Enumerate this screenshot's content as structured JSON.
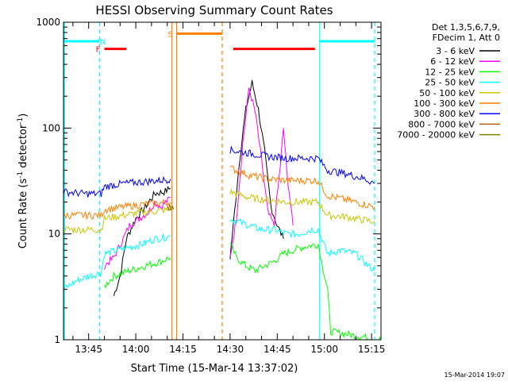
{
  "chart_data": {
    "type": "line",
    "title": "HESSI Observing Summary Count Rates",
    "xlabel": "Start Time (15-Mar-14 13:37:02)",
    "ylabel_main": "Count Rate (s",
    "ylabel_sup1": "-1",
    "ylabel_mid": " detector",
    "ylabel_sup2": "-1",
    "ylabel_end": ")",
    "footer": "15-Mar-2014 19:07",
    "yscale": "log",
    "ylim": [
      1,
      1000
    ],
    "xlim": [
      37,
      138
    ],
    "x_ticks": [
      {
        "v": 45,
        "label": "13:45"
      },
      {
        "v": 60,
        "label": "14:00"
      },
      {
        "v": 75,
        "label": "14:15"
      },
      {
        "v": 90,
        "label": "14:30"
      },
      {
        "v": 105,
        "label": "14:45"
      },
      {
        "v": 120,
        "label": "15:00"
      },
      {
        "v": 135,
        "label": "15:15"
      }
    ],
    "y_ticks": [
      {
        "v": 1,
        "label": "1"
      },
      {
        "v": 10,
        "label": "10"
      },
      {
        "v": 100,
        "label": "100"
      },
      {
        "v": 1000,
        "label": "1000"
      }
    ],
    "legend": {
      "placement": "top-right",
      "header": [
        "Det 1,3,5,6,7,9,",
        "FDecim 1, Att 0"
      ]
    },
    "series": [
      {
        "name": "3 - 6 keV",
        "color": "#000000",
        "points": [
          [
            53,
            2.6
          ],
          [
            55,
            4
          ],
          [
            57,
            9
          ],
          [
            60,
            14
          ],
          [
            63,
            18
          ],
          [
            66,
            24
          ],
          [
            69,
            25
          ],
          [
            71,
            27
          ],
          [
            72,
            null
          ],
          [
            89,
            null
          ],
          [
            90,
            6
          ],
          [
            91,
            12
          ],
          [
            93,
            50
          ],
          [
            95,
            150
          ],
          [
            97,
            270
          ],
          [
            99,
            150
          ],
          [
            101,
            60
          ],
          [
            103,
            18
          ],
          [
            105,
            12
          ],
          [
            107,
            9
          ],
          [
            110,
            null
          ]
        ]
      },
      {
        "name": "6 - 12 keV",
        "color": "#ff00ff",
        "points": [
          [
            50,
            5
          ],
          [
            53,
            6
          ],
          [
            56,
            9
          ],
          [
            58,
            12
          ],
          [
            61,
            14
          ],
          [
            64,
            16
          ],
          [
            66,
            20
          ],
          [
            68,
            18
          ],
          [
            71,
            22
          ],
          [
            72,
            null
          ],
          [
            89,
            null
          ],
          [
            90,
            6
          ],
          [
            92,
            14
          ],
          [
            94,
            70
          ],
          [
            96,
            240
          ],
          [
            98,
            140
          ],
          [
            100,
            50
          ],
          [
            102,
            16
          ],
          [
            104,
            12
          ],
          [
            106,
            45
          ],
          [
            107,
            100
          ],
          [
            108,
            40
          ],
          [
            110,
            12
          ],
          [
            112,
            null
          ]
        ]
      },
      {
        "name": "12 - 25 keV",
        "color": "#00ff00",
        "points": [
          [
            50,
            3.2
          ],
          [
            53,
            4
          ],
          [
            58,
            4.5
          ],
          [
            63,
            5
          ],
          [
            68,
            5.5
          ],
          [
            71,
            6
          ],
          [
            72,
            null
          ],
          [
            89,
            null
          ],
          [
            90,
            8
          ],
          [
            92,
            6
          ],
          [
            95,
            5
          ],
          [
            98,
            4.5
          ],
          [
            101,
            5
          ],
          [
            104,
            5.5
          ],
          [
            107,
            6.5
          ],
          [
            110,
            7
          ],
          [
            113,
            7.5
          ],
          [
            118,
            8
          ],
          [
            121,
            3
          ],
          [
            122,
            1.2
          ],
          [
            138,
            1
          ]
        ]
      },
      {
        "name": "25 - 50 keV",
        "color": "#00ffff",
        "points": [
          [
            37,
            3
          ],
          [
            41,
            3.6
          ],
          [
            45,
            4
          ],
          [
            49,
            4.3
          ],
          [
            50,
            6.5
          ],
          [
            54,
            7
          ],
          [
            58,
            7.5
          ],
          [
            62,
            8
          ],
          [
            66,
            9
          ],
          [
            71,
            9.5
          ],
          [
            72,
            null
          ],
          [
            89,
            null
          ],
          [
            90,
            14
          ],
          [
            93,
            13
          ],
          [
            96,
            12
          ],
          [
            100,
            11
          ],
          [
            104,
            11
          ],
          [
            108,
            10
          ],
          [
            112,
            10
          ],
          [
            116,
            11
          ],
          [
            118,
            11
          ],
          [
            121,
            6.5
          ],
          [
            125,
            7
          ],
          [
            130,
            6.5
          ],
          [
            134,
            5
          ],
          [
            136,
            4.5
          ]
        ]
      },
      {
        "name": "50 - 100 keV",
        "color": "#c8c800",
        "points": [
          [
            37,
            11
          ],
          [
            44,
            11
          ],
          [
            49,
            11
          ],
          [
            50,
            14
          ],
          [
            56,
            15
          ],
          [
            62,
            16
          ],
          [
            67,
            16.5
          ],
          [
            71,
            17
          ],
          [
            72,
            null
          ],
          [
            89,
            null
          ],
          [
            90,
            25
          ],
          [
            96,
            22
          ],
          [
            102,
            21
          ],
          [
            108,
            20
          ],
          [
            114,
            20
          ],
          [
            118,
            20
          ],
          [
            121,
            15
          ],
          [
            127,
            14.5
          ],
          [
            133,
            13.5
          ],
          [
            136,
            13
          ]
        ]
      },
      {
        "name": "100 - 300 keV",
        "color": "#ff8000",
        "points": [
          [
            37,
            15
          ],
          [
            44,
            15
          ],
          [
            49,
            15
          ],
          [
            50,
            17
          ],
          [
            56,
            18
          ],
          [
            62,
            19
          ],
          [
            67,
            19.5
          ],
          [
            71,
            20
          ],
          [
            72,
            null
          ],
          [
            89,
            null
          ],
          [
            90,
            42
          ],
          [
            96,
            36
          ],
          [
            102,
            33
          ],
          [
            108,
            32
          ],
          [
            114,
            32
          ],
          [
            118,
            32
          ],
          [
            121,
            23
          ],
          [
            127,
            21
          ],
          [
            133,
            19
          ],
          [
            136,
            18
          ]
        ]
      },
      {
        "name": "300 - 800 keV",
        "color": "#0000ff",
        "points": [
          [
            37,
            25
          ],
          [
            44,
            24
          ],
          [
            49,
            24
          ],
          [
            50,
            28
          ],
          [
            56,
            30
          ],
          [
            62,
            31
          ],
          [
            67,
            32
          ],
          [
            71,
            33
          ],
          [
            72,
            null
          ],
          [
            89,
            null
          ],
          [
            90,
            62
          ],
          [
            96,
            58
          ],
          [
            102,
            54
          ],
          [
            108,
            52
          ],
          [
            114,
            52
          ],
          [
            118,
            52
          ],
          [
            121,
            40
          ],
          [
            127,
            37
          ],
          [
            133,
            33
          ],
          [
            136,
            30
          ]
        ]
      },
      {
        "name": "800 - 7000 keV",
        "color": "#b06000",
        "points": [
          [
            70,
            18
          ],
          [
            72,
            18
          ]
        ]
      },
      {
        "name": "7000 - 20000 keV",
        "color": "#808000",
        "points": [
          [
            70,
            17
          ],
          [
            72,
            17
          ]
        ]
      }
    ],
    "flags": [
      {
        "label": "",
        "color": "#00ffff",
        "x0": 37,
        "x1": 48.5,
        "y": 660
      },
      {
        "label": "N",
        "color": "#00ffff",
        "x0": 48.5,
        "x1": 48.5,
        "y": 660,
        "label_x": 49.5
      },
      {
        "label": "F",
        "color": "#ff0000",
        "x0": 50,
        "x1": 57,
        "y": 560,
        "label_x": 48
      },
      {
        "label": "S",
        "color": "#ff8000",
        "x0": 73,
        "x1": 87.5,
        "y": 780,
        "label_x": 71
      },
      {
        "label": "",
        "color": "#ff0000",
        "x0": 91,
        "x1": 117,
        "y": 560
      },
      {
        "label": "",
        "color": "#00ffff",
        "x0": 118.5,
        "x1": 136,
        "y": 660
      }
    ],
    "vlines": [
      {
        "x": 48.5,
        "color": "#00ffff",
        "dash": true
      },
      {
        "x": 71.5,
        "color": "#ff8000",
        "dash": false
      },
      {
        "x": 73,
        "color": "#ff8000",
        "dash": false
      },
      {
        "x": 87.5,
        "color": "#ff8000",
        "dash": true
      },
      {
        "x": 118.5,
        "color": "#00ffff",
        "dash": false
      },
      {
        "x": 136,
        "color": "#00ffff",
        "dash": true
      },
      {
        "x": 37.3,
        "color": "#00ffff",
        "dash": false
      }
    ]
  }
}
